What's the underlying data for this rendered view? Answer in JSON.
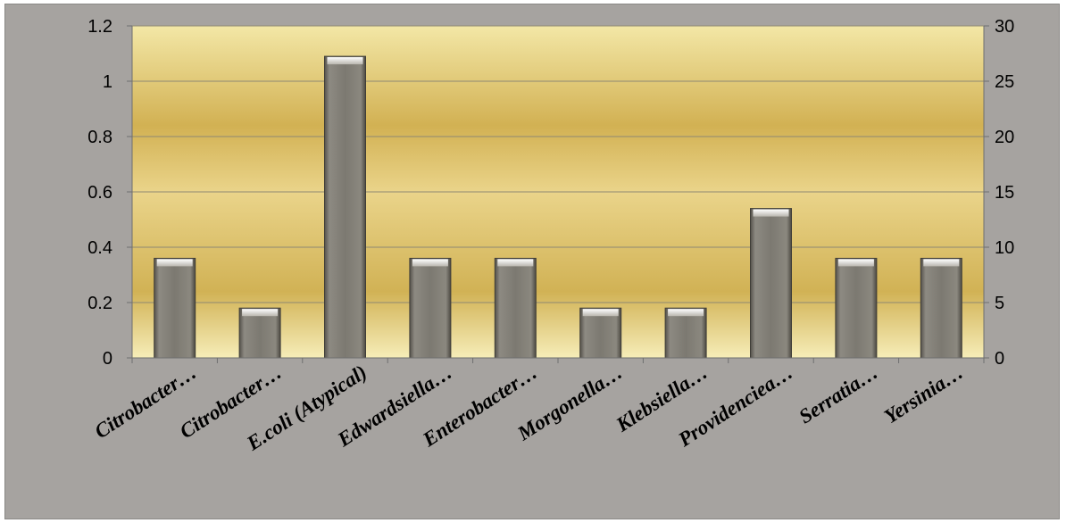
{
  "chart_data": {
    "type": "bar",
    "categories": [
      "Citrobacter…",
      "Citrobacter…",
      "E.coli (Atypical)",
      "Edwardsiella…",
      "Enterobacter…",
      "Morgonella…",
      "Klebsiella…",
      "Providenciea…",
      "Serratia…",
      "Yersinia…"
    ],
    "series": [
      {
        "values": [
          0.36,
          0.18,
          1.09,
          0.36,
          0.36,
          0.18,
          0.18,
          0.54,
          0.36,
          0.36
        ]
      }
    ],
    "ylim": [
      0,
      1.2
    ],
    "yticks": [
      "0",
      "0.2",
      "0.4",
      "0.6",
      "0.8",
      "1",
      "1.2"
    ],
    "y2lim": [
      0,
      30
    ],
    "y2ticks": [
      "0",
      "5",
      "10",
      "15",
      "20",
      "25",
      "30"
    ],
    "grid": true,
    "colors": {
      "bar": "#7f7c74",
      "plot_gold_dark": "#cfae4a",
      "plot_gold_light": "#f1e09a",
      "outer_background": "#a6a3a0"
    }
  }
}
